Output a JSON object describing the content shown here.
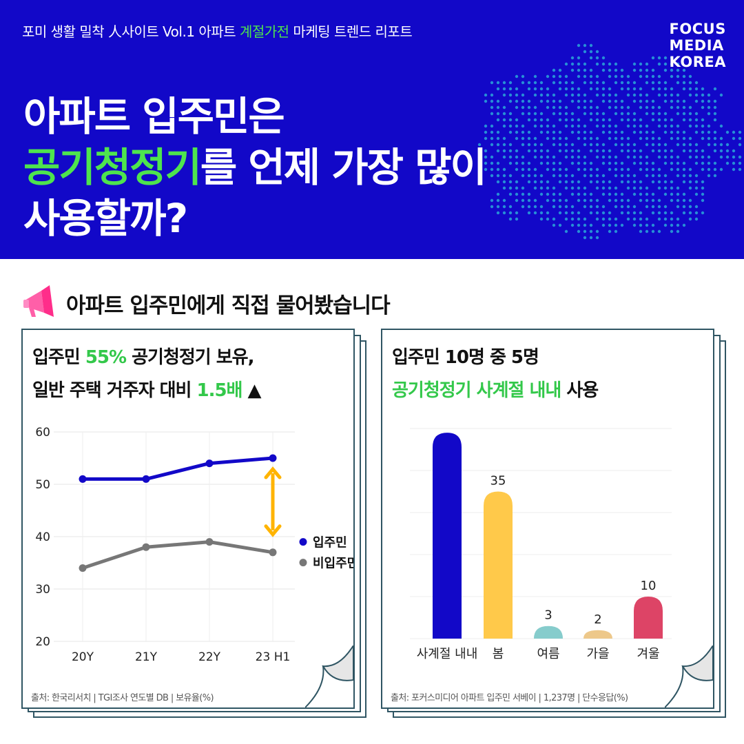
{
  "header": {
    "series_prefix": "포미 생활 밀착 人사이트 Vol.1 아파트 ",
    "series_highlight": "계절가전",
    "series_suffix": " 마케팅 트렌드 리포트",
    "logo_lines": [
      "FOCUS",
      "MEDIA",
      "KOREA"
    ],
    "title_line1": "아파트 입주민은",
    "title_line2_highlight": "공기청정기",
    "title_line2_rest": "를 언제 가장 많이",
    "title_line3": "사용할까?"
  },
  "section": {
    "title": "아파트 입주민에게 직접 물어봤습니다",
    "icon": "megaphone-icon"
  },
  "left_card": {
    "title_a1": "입주민 ",
    "title_a_highlight": "55%",
    "title_a2": " 공기청정기 보유,",
    "title_b1": "일반 주택 거주자 대비 ",
    "title_b_highlight": "1.5배",
    "title_b_arrow": " ▲",
    "source": "출처: 한국리서치 | TGI조사 연도별 DB | 보유율(%)"
  },
  "right_card": {
    "title_a": "입주민 10명 중 5명",
    "title_b_highlight": "공기청정기 사계절 내내",
    "title_b_rest": " 사용",
    "source": "출처: 포커스미디어 아파트 입주민 서베이 | 1,237명 | 단수응답(%)"
  },
  "colors": {
    "banner": "#1208c8",
    "highlight_green": "#4ee44e",
    "resident": "#1208c8",
    "nonresident": "#777777",
    "gap_arrow": "#ffb400"
  },
  "chart_data": [
    {
      "type": "line",
      "categories": [
        "20Y",
        "21Y",
        "22Y",
        "23 H1"
      ],
      "series": [
        {
          "name": "입주민",
          "values": [
            51,
            51,
            54,
            55
          ],
          "color": "#1208c8"
        },
        {
          "name": "비입주민",
          "values": [
            34,
            38,
            39,
            37
          ],
          "color": "#777777"
        }
      ],
      "yticks": [
        60,
        50,
        40,
        30,
        20
      ],
      "ylim": [
        20,
        60
      ],
      "grid": true,
      "legend": "right"
    },
    {
      "type": "bar",
      "categories": [
        "사계절 내내",
        "봄",
        "여름",
        "가을",
        "겨울"
      ],
      "values": [
        49,
        35,
        3,
        2,
        10
      ],
      "value_labels": [
        "49",
        "35",
        "3",
        "2",
        "10"
      ],
      "colors": [
        "#1208c8",
        "#ffc94a",
        "#86cccc",
        "#edc88a",
        "#dd4466"
      ],
      "ylim": [
        0,
        50
      ],
      "grid": true
    }
  ]
}
